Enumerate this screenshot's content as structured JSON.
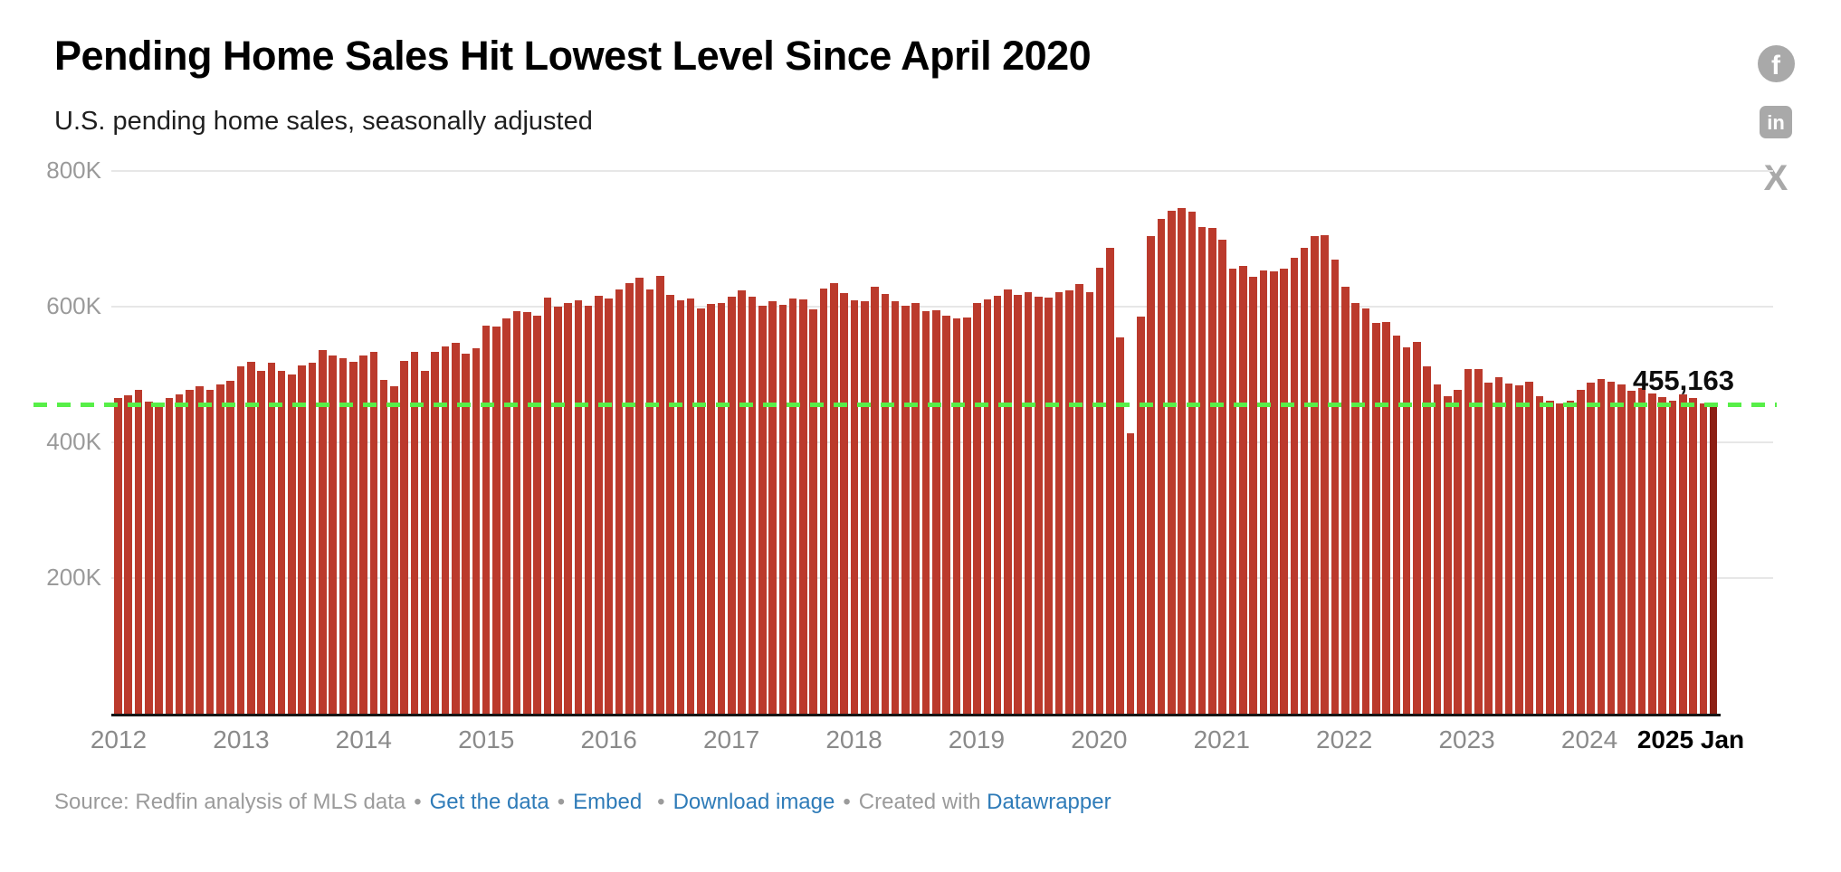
{
  "header": {
    "title": "Pending Home Sales Hit Lowest Level Since April 2020",
    "subtitle": "U.S. pending home sales, seasonally adjusted"
  },
  "share": {
    "facebook_glyph": "f",
    "linkedin_glyph": "in",
    "x_glyph": "X"
  },
  "annotation": {
    "label": "455,163"
  },
  "y_axis": {
    "ticks": [
      {
        "label": "800K",
        "value": 800
      },
      {
        "label": "600K",
        "value": 600
      },
      {
        "label": "400K",
        "value": 400
      },
      {
        "label": "200K",
        "value": 200
      }
    ]
  },
  "x_axis": {
    "ticks": [
      "2012",
      "2013",
      "2014",
      "2015",
      "2016",
      "2017",
      "2018",
      "2019",
      "2020",
      "2021",
      "2022",
      "2023",
      "2024",
      "2025 Jan"
    ]
  },
  "footer": {
    "source": "Source: Redfin analysis of MLS data",
    "separator": "•",
    "links": {
      "get_data": "Get the data",
      "embed": "Embed",
      "download": "Download image",
      "datawrapper": "Datawrapper"
    },
    "created_with": "Created with"
  },
  "colors": {
    "bar": "#bb3a2c",
    "bar_highlight": "#8c1f14",
    "reference_line": "#57ef48",
    "link_blue": "#2e7bb8",
    "icon_gray": "#a9a9a9",
    "axis_text": "#9a9a9a"
  },
  "chart_data": {
    "type": "bar",
    "title": "Pending Home Sales Hit Lowest Level Since April 2020",
    "subtitle": "U.S. pending home sales, seasonally adjusted",
    "unit": "homes (thousands)",
    "frequency": "monthly",
    "start": "2012-01",
    "end": "2025-01",
    "ylim_thousands": [
      0,
      800
    ],
    "grid": "on",
    "reference_line": {
      "value": 455163,
      "label": "455,163",
      "style": "dashed-green",
      "meaning": "Jan 2025 level, lowest since April 2020"
    },
    "highlighted_last_point": {
      "month": "2025-01",
      "value": 455163
    },
    "values_thousands": [
      466,
      469,
      477,
      460,
      459,
      466,
      471,
      477,
      483,
      478,
      486,
      491,
      512,
      519,
      506,
      517,
      505,
      500,
      513,
      518,
      536,
      528,
      524,
      519,
      528,
      533,
      492,
      483,
      520,
      533,
      506,
      533,
      542,
      547,
      531,
      539,
      572,
      571,
      583,
      593,
      592,
      587,
      613,
      600,
      606,
      610,
      601,
      616,
      612,
      625,
      635,
      643,
      625,
      646,
      618,
      610,
      612,
      597,
      604,
      605,
      615,
      624,
      615,
      601,
      608,
      603,
      612,
      611,
      596,
      627,
      635,
      620,
      610,
      608,
      630,
      619,
      608,
      602,
      605,
      594,
      595,
      587,
      583,
      584,
      606,
      611,
      616,
      625,
      617,
      622,
      615,
      613,
      621,
      624,
      634,
      621,
      657,
      687,
      555,
      413,
      585,
      704,
      730,
      742,
      745,
      740,
      717,
      716,
      699,
      656,
      660,
      644,
      654,
      652,
      656,
      672,
      687,
      704,
      706,
      669,
      630,
      605,
      597,
      576,
      577,
      557,
      540,
      548,
      512,
      485,
      468,
      478,
      508,
      508,
      488,
      496,
      487,
      484,
      489,
      468,
      461,
      458,
      462,
      477,
      488,
      494,
      490,
      485,
      476,
      480,
      472,
      467,
      462,
      471,
      465,
      457,
      455.163
    ]
  }
}
